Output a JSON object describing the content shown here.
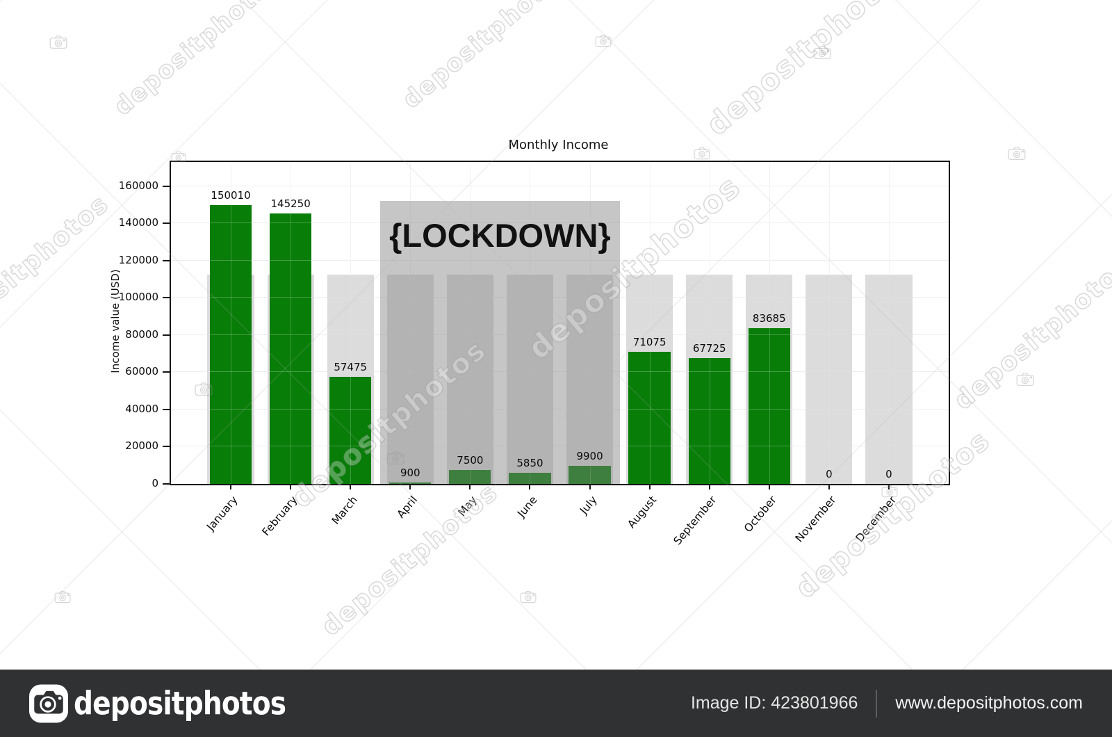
{
  "chart_data": {
    "type": "bar",
    "title": "Monthly Income",
    "xlabel": "",
    "ylabel": "Income value (USD)",
    "categories": [
      "January",
      "February",
      "March",
      "April",
      "May",
      "June",
      "July",
      "August",
      "September",
      "October",
      "November",
      "December"
    ],
    "values": [
      150010,
      145250,
      57475,
      900,
      7500,
      5850,
      9900,
      71075,
      67725,
      83685,
      0,
      0
    ],
    "background_bar_value": 112500,
    "ylim": [
      0,
      173000
    ],
    "yticks": [
      0,
      20000,
      40000,
      60000,
      80000,
      100000,
      120000,
      140000,
      160000
    ],
    "grid": true,
    "legend": null,
    "bar_color": "#087d08",
    "background_bar_color": "#dcdcdc",
    "annotation": {
      "text": "{LOCKDOWN}",
      "start_category": "April",
      "end_category": "July",
      "top_value": 152000,
      "box_color": "#808080",
      "box_opacity": 0.45
    }
  },
  "watermark": {
    "text": "depositphotos",
    "camera_icon": "camera-outline",
    "bottom_bar": {
      "logo_text": "depositphotos",
      "image_id": "Image ID: 423801966",
      "website": "www.depositphotos.com"
    }
  }
}
